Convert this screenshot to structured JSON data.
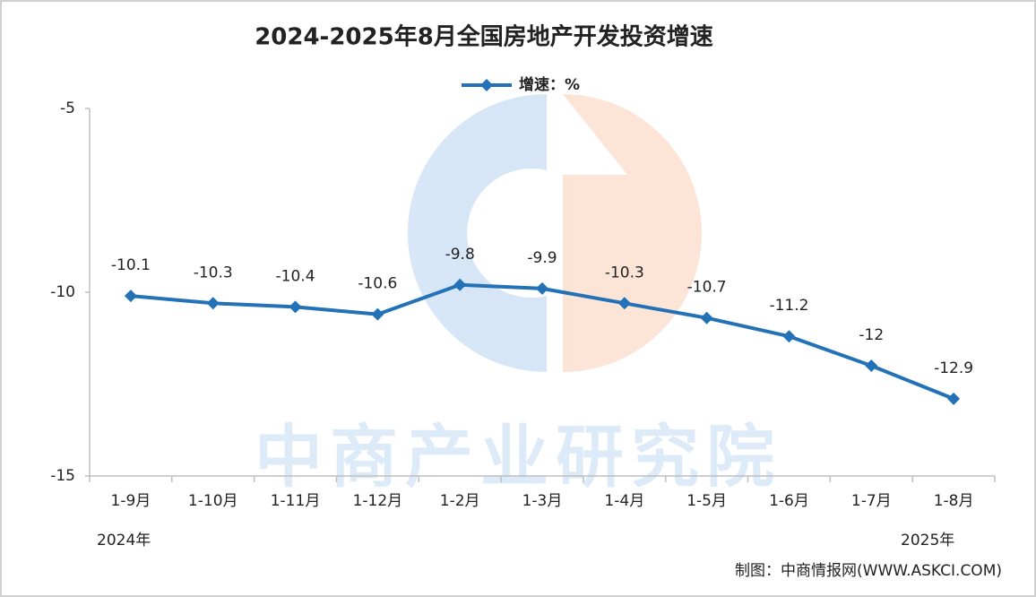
{
  "chart_data": {
    "type": "line",
    "title": "2024-2025年8月全国房地产开发投资增速",
    "categories": [
      "1-9月",
      "1-10月",
      "1-11月",
      "1-12月",
      "1-2月",
      "1-3月",
      "1-4月",
      "1-5月",
      "1-6月",
      "1-7月",
      "1-8月"
    ],
    "series": [
      {
        "name": "增速：%",
        "color": "#2372b8",
        "values": [
          -10.1,
          -10.3,
          -10.4,
          -10.6,
          -9.8,
          -9.9,
          -10.3,
          -10.7,
          -11.2,
          -12,
          -12.9
        ]
      }
    ],
    "ylim": [
      -15,
      -5
    ],
    "yticks": [
      -5,
      -10,
      -15
    ],
    "grid": false,
    "legend": "top",
    "year_labels": [
      "2024年",
      "2025年"
    ],
    "source": "制图：中商情报网(WWW.ASKCI.COM)",
    "watermark": "中商产业研究院"
  }
}
